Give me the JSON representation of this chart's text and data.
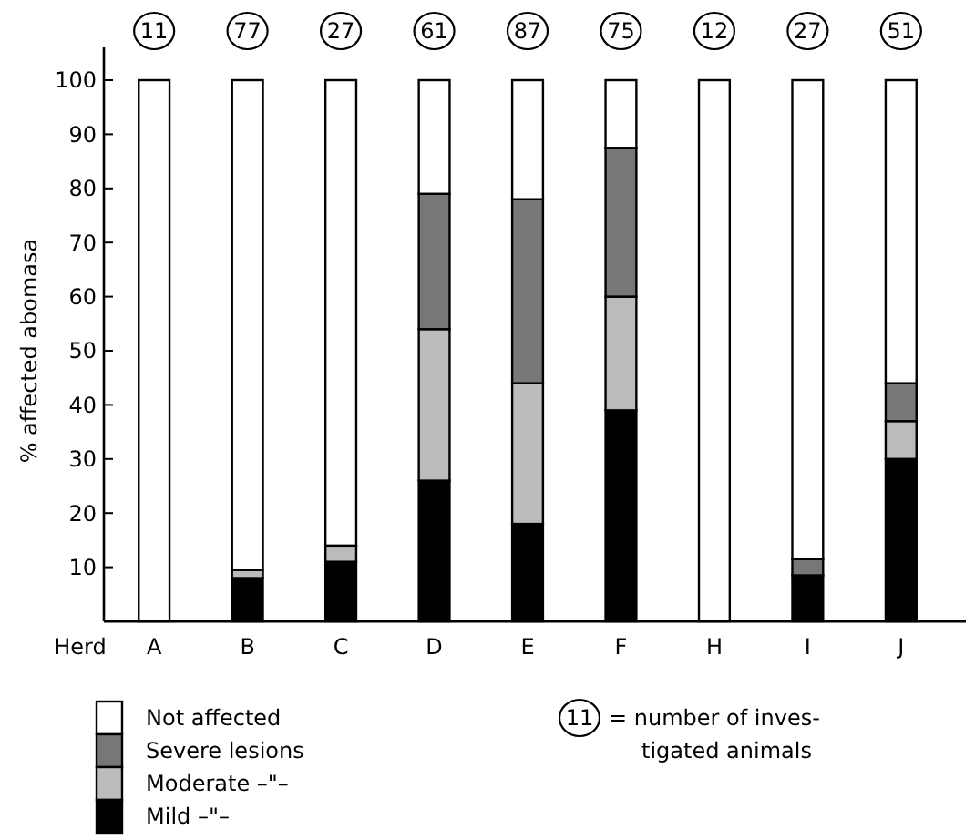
{
  "chart_data": {
    "type": "bar",
    "stacked": true,
    "ylabel": "% affected abomasa",
    "xlabel": "Herd",
    "categories": [
      "A",
      "B",
      "C",
      "D",
      "E",
      "F",
      "H",
      "I",
      "J"
    ],
    "series": [
      {
        "name": "Mild –\"–",
        "color": "#000000",
        "values": [
          0,
          8,
          11,
          26,
          18,
          39,
          0,
          8.5,
          30
        ]
      },
      {
        "name": "Moderate –\"–",
        "color": "#bbbbbb",
        "values": [
          0,
          1.5,
          3,
          28,
          26,
          21,
          0,
          0,
          7
        ]
      },
      {
        "name": "Severe lesions",
        "color": "#777777",
        "values": [
          0,
          0,
          0,
          25,
          34,
          27.5,
          0,
          3,
          7
        ]
      },
      {
        "name": "Not affected",
        "color": "#ffffff",
        "values": [
          100,
          90.5,
          86,
          21,
          22,
          12.5,
          100,
          88.5,
          56
        ]
      }
    ],
    "ylim": [
      0,
      100
    ],
    "yticks": [
      10,
      20,
      30,
      40,
      50,
      60,
      70,
      80,
      90,
      100
    ],
    "grid": false,
    "legend": "bottom left",
    "annotations": [
      {
        "text": "11",
        "x": "A",
        "y": 100
      },
      {
        "text": "77",
        "x": "B",
        "y": 100
      },
      {
        "text": "27",
        "x": "C",
        "y": 100
      },
      {
        "text": "61",
        "x": "D",
        "y": 100
      },
      {
        "text": "87",
        "x": "E",
        "y": 100
      },
      {
        "text": "75",
        "x": "F",
        "y": 100
      },
      {
        "text": "12",
        "x": "H",
        "y": 100
      },
      {
        "text": "27",
        "x": "I",
        "y": 100
      },
      {
        "text": "51",
        "x": "J",
        "y": 100
      },
      "11 = number of inves- tigated animals"
    ]
  }
}
